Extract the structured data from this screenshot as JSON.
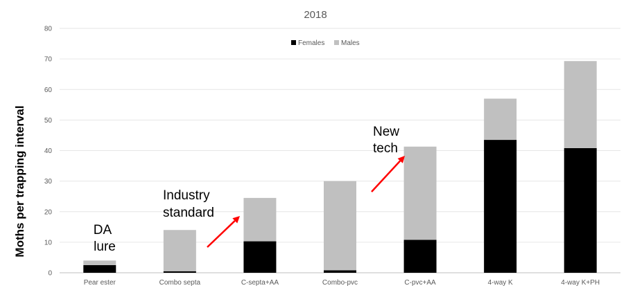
{
  "chart_data": {
    "type": "bar",
    "stacked": true,
    "title": "2018",
    "ylabel": "Moths per trapping interval",
    "xlabel": "",
    "ylim": [
      0,
      80
    ],
    "yticks": [
      0,
      10,
      20,
      30,
      40,
      50,
      60,
      70,
      80
    ],
    "grid": true,
    "legend_position": "top-center",
    "categories": [
      "Pear ester",
      "Combo septa",
      "C-septa+AA",
      "Combo-pvc",
      "C-pvc+AA",
      "4-way K",
      "4-way K+PH"
    ],
    "series": [
      {
        "name": "Females",
        "color": "#000000",
        "values": [
          2.5,
          0.5,
          10.3,
          0.8,
          10.8,
          43.5,
          40.8
        ]
      },
      {
        "name": "Males",
        "color": "#c0c0c0",
        "values": [
          1.5,
          13.5,
          14.2,
          29.2,
          30.5,
          13.5,
          28.5
        ]
      }
    ],
    "annotations": [
      {
        "id": "da-lure",
        "lines": [
          "DA",
          "lure"
        ]
      },
      {
        "id": "industry-standard",
        "lines": [
          "Industry",
          "standard"
        ]
      },
      {
        "id": "new-tech",
        "lines": [
          "New",
          "tech"
        ]
      }
    ],
    "arrow_color": "#ff0000"
  }
}
